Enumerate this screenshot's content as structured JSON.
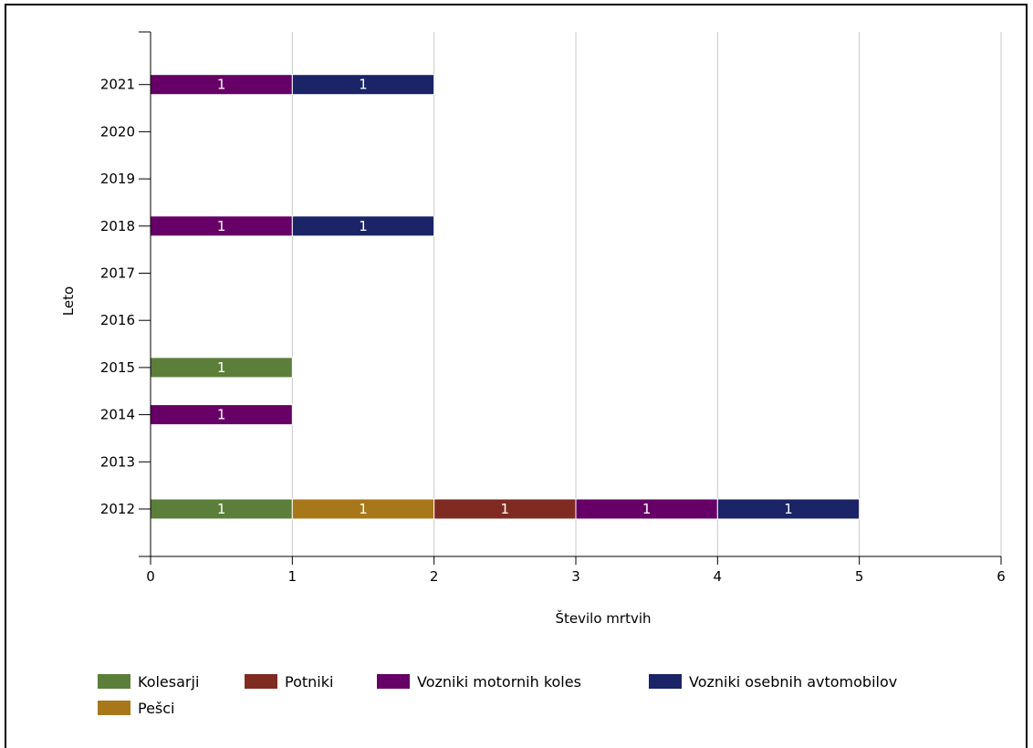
{
  "chart_data": {
    "type": "bar",
    "orientation": "horizontal",
    "stacked": true,
    "xlabel": "Število mrtvih",
    "ylabel": "Leto",
    "xlim": [
      0,
      6
    ],
    "xticks": [
      "0",
      "1",
      "2",
      "3",
      "4",
      "5",
      "6"
    ],
    "categories": [
      "2012",
      "2013",
      "2014",
      "2015",
      "2016",
      "2017",
      "2018",
      "2019",
      "2020",
      "2021"
    ],
    "grid": "vertical",
    "legend_position": "bottom",
    "series": [
      {
        "name": "Kolesarji",
        "color": "#5b7f3a",
        "values": [
          1,
          0,
          0,
          1,
          0,
          0,
          0,
          0,
          0,
          0
        ]
      },
      {
        "name": "Pešci",
        "color": "#a8771a",
        "values": [
          1,
          0,
          0,
          0,
          0,
          0,
          0,
          0,
          0,
          0
        ]
      },
      {
        "name": "Potniki",
        "color": "#7f2b22",
        "values": [
          1,
          0,
          0,
          0,
          0,
          0,
          0,
          0,
          0,
          0
        ]
      },
      {
        "name": "Vozniki motornih koles",
        "color": "#660066",
        "values": [
          1,
          0,
          1,
          0,
          0,
          0,
          1,
          0,
          0,
          1
        ]
      },
      {
        "name": "Vozniki osebnih avtomobilov",
        "color": "#1a2466",
        "values": [
          1,
          0,
          0,
          0,
          0,
          0,
          1,
          0,
          0,
          1
        ]
      }
    ],
    "legend_order": [
      "Kolesarji",
      "Potniki",
      "Vozniki motornih koles",
      "Vozniki osebnih avtomobilov",
      "Pešci"
    ]
  }
}
